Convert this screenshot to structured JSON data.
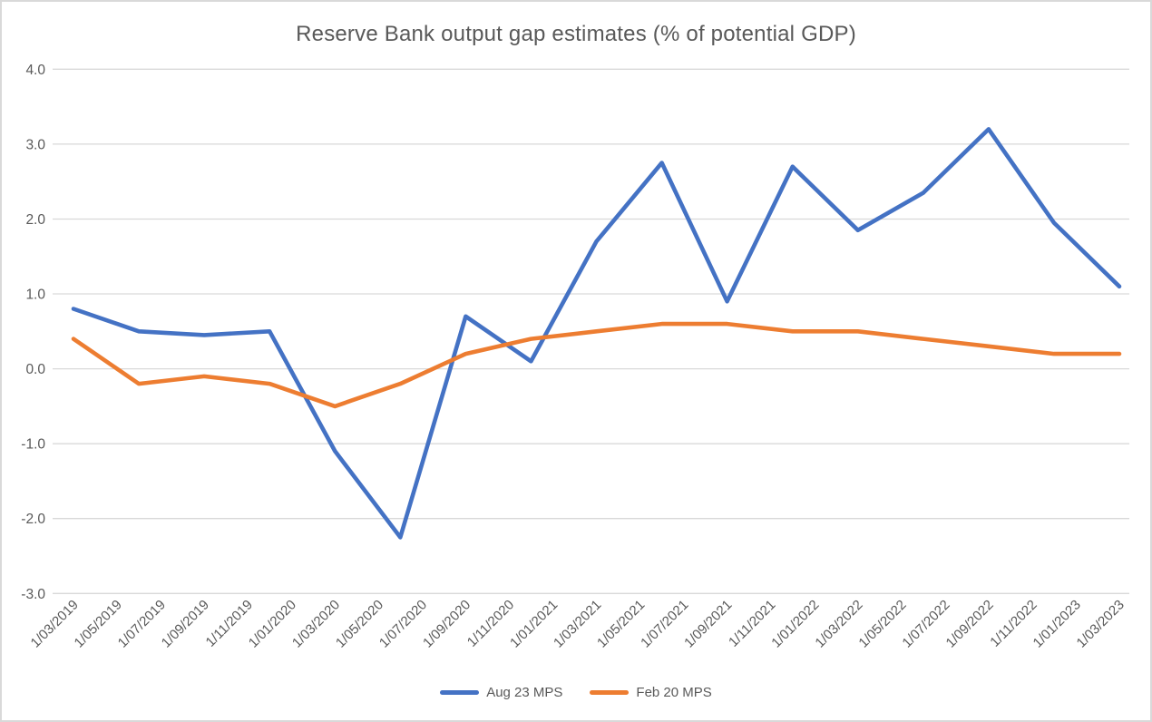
{
  "window": {
    "background": "#FFFFFF",
    "border_color": "#D9D9D9"
  },
  "chart_data": {
    "type": "line",
    "title": "Reserve Bank output gap estimates (% of potential GDP)",
    "x_dates_quarterly": [
      "1/03/2019",
      "1/06/2019",
      "1/09/2019",
      "1/12/2019",
      "1/03/2020",
      "1/06/2020",
      "1/09/2020",
      "1/12/2020",
      "1/03/2021",
      "1/06/2021",
      "1/09/2021",
      "1/12/2021",
      "1/03/2022",
      "1/06/2022",
      "1/09/2022",
      "1/12/2022",
      "1/03/2023"
    ],
    "series": [
      {
        "name": "Aug 23 MPS",
        "color": "#4472C4",
        "values": [
          0.8,
          0.5,
          0.45,
          0.5,
          -1.1,
          -2.25,
          0.7,
          0.1,
          1.7,
          2.75,
          0.9,
          2.7,
          1.85,
          2.35,
          3.2,
          1.95,
          1.1
        ]
      },
      {
        "name": "Feb 20 MPS",
        "color": "#ED7D31",
        "values": [
          0.4,
          -0.2,
          -0.1,
          -0.2,
          -0.5,
          -0.2,
          0.2,
          0.4,
          0.5,
          0.6,
          0.6,
          0.5,
          0.5,
          0.4,
          0.3,
          0.2,
          0.2
        ]
      }
    ],
    "x_axis": {
      "tick_labels": [
        "1/03/2019",
        "1/05/2019",
        "1/07/2019",
        "1/09/2019",
        "1/11/2019",
        "1/01/2020",
        "1/03/2020",
        "1/05/2020",
        "1/07/2020",
        "1/09/2020",
        "1/11/2020",
        "1/01/2021",
        "1/03/2021",
        "1/05/2021",
        "1/07/2021",
        "1/09/2021",
        "1/11/2021",
        "1/01/2022",
        "1/03/2022",
        "1/05/2022",
        "1/07/2022",
        "1/09/2022",
        "1/11/2022",
        "1/01/2023",
        "1/03/2023"
      ],
      "label_rotation_deg": -45
    },
    "y_axis": {
      "tick_labels": [
        "4.0",
        "3.0",
        "2.0",
        "1.0",
        "0.0",
        "-1.0",
        "-2.0",
        "-3.0"
      ],
      "tick_values": [
        4,
        3,
        2,
        1,
        0,
        -1,
        -2,
        -3
      ],
      "min": -3.0,
      "max": 4.0
    },
    "grid": {
      "show": true,
      "color": "#D9D9D9"
    },
    "legend": {
      "position": "bottom"
    },
    "text_color": "#595959"
  }
}
